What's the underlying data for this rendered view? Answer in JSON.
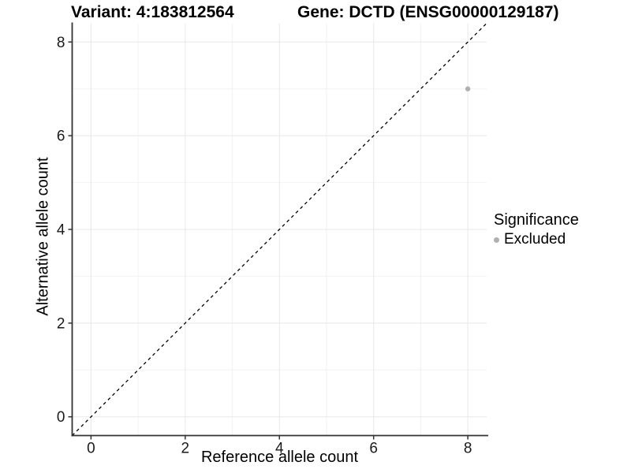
{
  "header": {
    "variant_title": "Variant: 4:183812564",
    "gene_title": "Gene: DCTD (ENSG00000129187)"
  },
  "chart_data": {
    "type": "scatter",
    "title_left": "Variant: 4:183812564",
    "title_right": "Gene: DCTD (ENSG00000129187)",
    "xlabel": "Reference allele count",
    "ylabel": "Alternative allele count",
    "xlim": [
      -0.4,
      8.4
    ],
    "ylim": [
      -0.4,
      8.4
    ],
    "x_ticks": [
      0,
      2,
      4,
      6,
      8
    ],
    "y_ticks": [
      0,
      2,
      4,
      6,
      8
    ],
    "x_minor_ticks": [
      1,
      3,
      5,
      7
    ],
    "y_minor_ticks": [
      1,
      3,
      5,
      7
    ],
    "grid": true,
    "reference_line": {
      "equation": "y = x",
      "from": [
        -0.4,
        -0.4
      ],
      "to": [
        8.4,
        8.4
      ],
      "style": "dashed",
      "color": "#000000"
    },
    "series": [
      {
        "name": "Excluded",
        "color": "#b0b0b0",
        "points": [
          {
            "x": 8,
            "y": 7
          }
        ]
      }
    ],
    "legend": {
      "title": "Significance",
      "position": "right",
      "items": [
        {
          "label": "Excluded",
          "color": "#b0b0b0"
        }
      ]
    },
    "style": {
      "background": "#ffffff",
      "major_grid_color": "#e8e8e8",
      "minor_grid_color": "#f2f2f2",
      "axis_line_color": "#333333",
      "tick_color": "#333333",
      "tick_label_color": "#1a1a1a",
      "point_radius": 3.2
    }
  }
}
